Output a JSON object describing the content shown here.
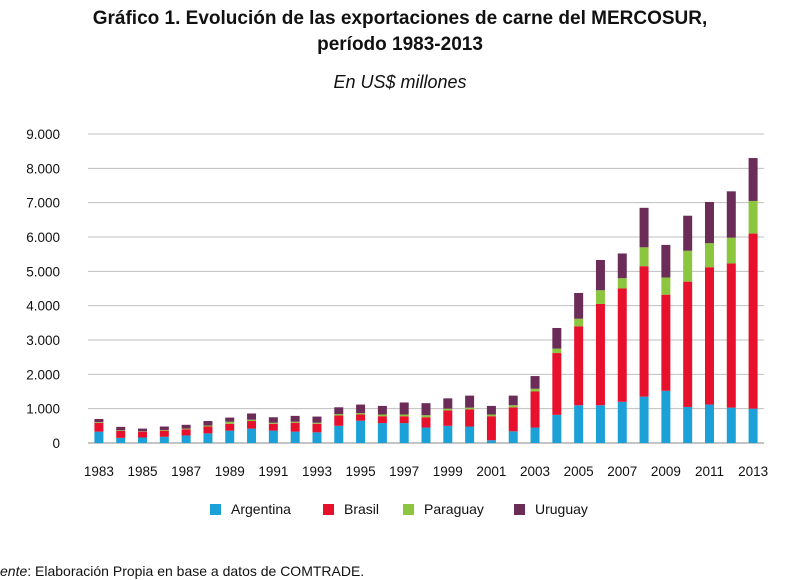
{
  "chart_data": {
    "type": "bar",
    "stacked": true,
    "title_line1": "Gráfico 1. Evolución de las exportaciones de carne del MERCOSUR,",
    "title_line2": "período 1983-2013",
    "subtitle": "En US$ millones",
    "ylim": [
      0,
      9000
    ],
    "yticks": [
      0,
      1000,
      2000,
      3000,
      4000,
      5000,
      6000,
      7000,
      8000,
      9000
    ],
    "ytick_labels": [
      "0",
      "1.000",
      "2.000",
      "3.000",
      "4.000",
      "5.000",
      "6.000",
      "7.000",
      "8.000",
      "9.000"
    ],
    "categories": [
      "1983",
      "1984",
      "1985",
      "1986",
      "1987",
      "1988",
      "1989",
      "1990",
      "1991",
      "1992",
      "1993",
      "1994",
      "1995",
      "1996",
      "1997",
      "1998",
      "1999",
      "2000",
      "2001",
      "2002",
      "2003",
      "2004",
      "2005",
      "2006",
      "2007",
      "2008",
      "2009",
      "2010",
      "2011",
      "2012",
      "2013"
    ],
    "xtick_labels": [
      "1983",
      "1985",
      "1987",
      "1989",
      "1991",
      "1993",
      "1995",
      "1997",
      "1999",
      "2001",
      "2003",
      "2005",
      "2007",
      "2009",
      "2011",
      "2013"
    ],
    "grid": true,
    "legend_position": "bottom",
    "series": [
      {
        "name": "Argentina",
        "color": "#1ba1d8",
        "values": [
          330,
          150,
          160,
          180,
          220,
          280,
          360,
          420,
          360,
          330,
          310,
          500,
          650,
          580,
          580,
          450,
          500,
          480,
          80,
          340,
          450,
          820,
          1100,
          1100,
          1200,
          1350,
          1520,
          1050,
          1120,
          1030,
          1000
        ]
      },
      {
        "name": "Brasil",
        "color": "#e8112d",
        "values": [
          260,
          200,
          170,
          180,
          180,
          200,
          200,
          220,
          200,
          260,
          250,
          300,
          180,
          200,
          200,
          300,
          450,
          500,
          700,
          700,
          1050,
          1800,
          2300,
          2950,
          3300,
          3800,
          2800,
          3650,
          4000,
          4200,
          5100
        ]
      },
      {
        "name": "Paraguay",
        "color": "#8cc63e",
        "values": [
          20,
          20,
          10,
          20,
          20,
          30,
          60,
          40,
          30,
          30,
          30,
          40,
          40,
          50,
          50,
          60,
          50,
          50,
          50,
          60,
          80,
          130,
          220,
          400,
          300,
          550,
          500,
          900,
          700,
          750,
          950
        ]
      },
      {
        "name": "Uruguay",
        "color": "#6b2c57",
        "values": [
          90,
          100,
          80,
          100,
          110,
          130,
          120,
          180,
          160,
          170,
          180,
          200,
          250,
          250,
          350,
          350,
          300,
          350,
          250,
          280,
          370,
          600,
          750,
          880,
          720,
          1150,
          950,
          1020,
          1200,
          1350,
          1250
        ]
      }
    ]
  },
  "legend": {
    "items": [
      "Argentina",
      "Brasil",
      "Paraguay",
      "Uruguay"
    ]
  },
  "source": {
    "label": "ente",
    "text": ": Elaboración Propia en base a datos de COMTRADE."
  }
}
